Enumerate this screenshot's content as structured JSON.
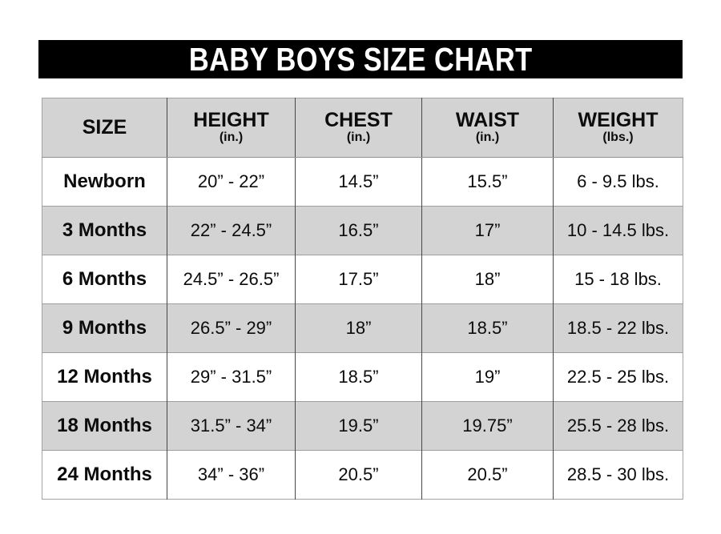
{
  "title": "BABY BOYS SIZE CHART",
  "colors": {
    "banner_background": "#000000",
    "banner_text": "#ffffff",
    "stripe_gray": "#d3d3d3",
    "column_divider": "#474747",
    "row_divider": "#9e9e9e"
  },
  "chart_data": {
    "type": "table",
    "title": "BABY BOYS SIZE CHART",
    "columns": [
      {
        "label": "SIZE",
        "unit": ""
      },
      {
        "label": "HEIGHT",
        "unit": "(in.)"
      },
      {
        "label": "CHEST",
        "unit": "(in.)"
      },
      {
        "label": "WAIST",
        "unit": "(in.)"
      },
      {
        "label": "WEIGHT",
        "unit": "(lbs.)"
      }
    ],
    "rows": [
      {
        "size": "Newborn",
        "height": "20” - 22”",
        "chest": "14.5”",
        "waist": "15.5”",
        "weight": "6 - 9.5 lbs."
      },
      {
        "size": "3 Months",
        "height": "22” - 24.5”",
        "chest": "16.5”",
        "waist": "17”",
        "weight": "10 - 14.5 lbs."
      },
      {
        "size": "6 Months",
        "height": "24.5” - 26.5”",
        "chest": "17.5”",
        "waist": "18”",
        "weight": "15 - 18 lbs."
      },
      {
        "size": "9 Months",
        "height": "26.5” - 29”",
        "chest": "18”",
        "waist": "18.5”",
        "weight": "18.5 - 22 lbs."
      },
      {
        "size": "12 Months",
        "height": "29” - 31.5”",
        "chest": "18.5”",
        "waist": "19”",
        "weight": "22.5 - 25 lbs."
      },
      {
        "size": "18 Months",
        "height": "31.5” - 34”",
        "chest": "19.5”",
        "waist": "19.75”",
        "weight": "25.5 - 28 lbs."
      },
      {
        "size": "24 Months",
        "height": "34” - 36”",
        "chest": "20.5”",
        "waist": "20.5”",
        "weight": "28.5 - 30 lbs."
      }
    ]
  }
}
